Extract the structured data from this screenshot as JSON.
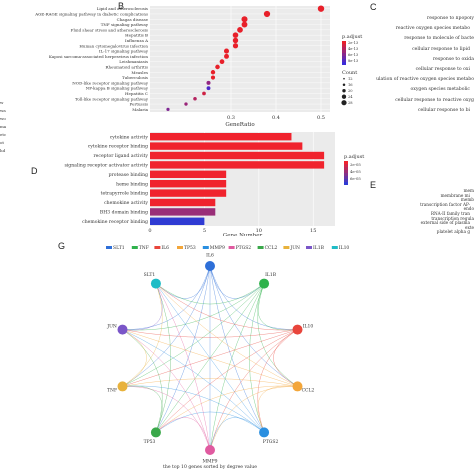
{
  "panels": {
    "b": "B",
    "c": "C",
    "d": "D",
    "e": "E",
    "g": "G"
  },
  "panel_c_terms": [
    "response to lipopoly",
    "reactive oxygen species metabo",
    "response to molecule of bacte",
    "cellular response to lipid",
    "response to oxida",
    "cellular response to oxi",
    "regulation of reactive oxygen species metabo",
    "oxygen species metabolic",
    "cellular response to reactive oxyg",
    "cellular response to bi"
  ],
  "panel_e_terms": [
    "mem",
    "membrane mi",
    "memb",
    "transcription factor AP-",
    "endo",
    "RNA-II family tran",
    "transcription regula",
    "external side of plasma",
    "exte",
    "platelet alpha g"
  ],
  "left_edge_fragments": [
    "w",
    "wa",
    "wo",
    "ma",
    "etc",
    "ot",
    "hd"
  ],
  "chart_data": [
    {
      "type": "scatter",
      "panel": "B",
      "categories": [
        "Lipid and atherosclerosis",
        "AGE-RAGE signaling pathway in diabetic complications",
        "Chagas disease",
        "TNF signaling pathway",
        "Fluid shear stress and atherosclerosis",
        "Hepatitis B",
        "Influenza A",
        "Human cytomegalovirus infection",
        "IL-17 signaling pathway",
        "Kaposi sarcoma-associated herpesvirus infection",
        "Leishmaniasis",
        "Rheumatoid arthritis",
        "Measles",
        "Tuberculosis",
        "NOD-like receptor signaling pathway",
        "NF-kappa B signaling pathway",
        "Hepatitis C",
        "Toll-like receptor signaling pathway",
        "Pertussis",
        "Malaria"
      ],
      "x": [
        0.5,
        0.38,
        0.33,
        0.33,
        0.32,
        0.31,
        0.31,
        0.31,
        0.29,
        0.29,
        0.28,
        0.27,
        0.26,
        0.26,
        0.25,
        0.25,
        0.24,
        0.22,
        0.2,
        0.16
      ],
      "xlabel": "GeneRatio",
      "xticks": [
        "0.3",
        "0.4",
        "0.5"
      ],
      "xlim": [
        0.12,
        0.52
      ],
      "legend_padjust_title": "p.adjust",
      "legend_padjust_labels": [
        "2e-13",
        "4e-13",
        "6e-13",
        "8e-13"
      ],
      "legend_count_title": "Count",
      "legend_count_labels": [
        "12",
        "16",
        "20",
        "24",
        "28"
      ],
      "colors": {
        "low": "#e8202a",
        "high": "#3b2bd9"
      }
    },
    {
      "type": "bar",
      "panel": "D",
      "categories": [
        "cytokine activity",
        "cytokine receptor binding",
        "receptor ligand activity",
        "signaling receptor activator activity",
        "protease binding",
        "heme binding",
        "tetrapyrrole binding",
        "chemokine activity",
        "BH3 domain binding",
        "chemokine receptor binding"
      ],
      "values": [
        13,
        14,
        16,
        16,
        7,
        7,
        7,
        6,
        6,
        5
      ],
      "xlabel": "Gene Number",
      "xticks": [
        "0",
        "5",
        "10",
        "15"
      ],
      "xlim": [
        0,
        17
      ],
      "legend_title": "p.adjust",
      "legend_labels": [
        "2e-05",
        "4e-05",
        "6e-05"
      ],
      "colors": {
        "low": "#f0232d",
        "high": "#2f3bd3"
      }
    }
  ],
  "network": {
    "legend": [
      "SLT1",
      "TNF",
      "IL6",
      "TP53",
      "MMP9",
      "PTGS2",
      "CCL2",
      "JUN",
      "IL1B",
      "IL10"
    ],
    "nodes": [
      "IL6",
      "IL1B",
      "IL10",
      "CCL2",
      "PTGS2",
      "MMP9",
      "TP53",
      "TNF",
      "JUN",
      "SLT1"
    ],
    "node_colors": [
      "#2e6fd8",
      "#2fb24c",
      "#e8453c",
      "#f3a63a",
      "#2a8fe0",
      "#e05aa0",
      "#3aa84a",
      "#e8b23c",
      "#7a56c8",
      "#1fbcc6"
    ],
    "caption": "the top 10 genes sorted by degree value"
  }
}
